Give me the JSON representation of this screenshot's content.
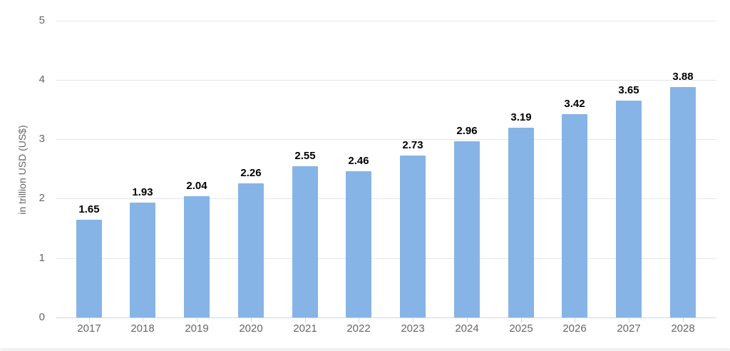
{
  "chart_data": {
    "type": "bar",
    "title": "",
    "xlabel": "",
    "ylabel": "in trillion USD (US$)",
    "categories": [
      "2017",
      "2018",
      "2019",
      "2020",
      "2021",
      "2022",
      "2023",
      "2024",
      "2025",
      "2026",
      "2027",
      "2028"
    ],
    "values": [
      1.65,
      1.93,
      2.04,
      2.26,
      2.55,
      2.46,
      2.73,
      2.96,
      3.19,
      3.42,
      3.65,
      3.88
    ],
    "value_labels": [
      "1.65",
      "1.93",
      "2.04",
      "2.26",
      "2.55",
      "2.46",
      "2.73",
      "2.96",
      "3.19",
      "3.42",
      "3.65",
      "3.88"
    ],
    "ylim": [
      0,
      5
    ],
    "yticks": [
      0,
      1,
      2,
      3,
      4,
      5
    ],
    "grid": true,
    "legend": "none",
    "colors": {
      "bar_fill": "#87b4e6",
      "grid_line": "#e6e6e6",
      "axis_line": "#ccd6eb",
      "axis_label": "#666666",
      "data_label": "#000000",
      "background": "#ffffff"
    }
  }
}
